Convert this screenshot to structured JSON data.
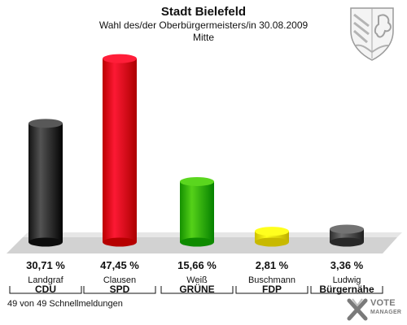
{
  "header": {
    "title": "Stadt Bielefeld",
    "subtitle": "Wahl des/der Oberbürgermeisters/in 30.08.2009",
    "area": "Mitte"
  },
  "footer": {
    "status": "49 von 49 Schnellmeldungen"
  },
  "logo": {
    "line1": "VOTE",
    "line2": "MANAGER"
  },
  "icons": {
    "crest": "state-coat-of-arms-icon",
    "logo_mark": "vote-manager-x-icon"
  },
  "chart_data": {
    "type": "bar",
    "categories": [
      "Landgraf",
      "Clausen",
      "Weiß",
      "Buschmann",
      "Ludwig"
    ],
    "parties": [
      "CDU",
      "SPD",
      "GRÜNE",
      "FDP",
      "Bürgernähe"
    ],
    "values": [
      30.71,
      47.45,
      15.66,
      2.81,
      3.36
    ],
    "value_labels": [
      "30,71 %",
      "47,45 %",
      "15,66 %",
      "2,81 %",
      "3,36 %"
    ],
    "colors": [
      "#3a3a3a",
      "#e3001b",
      "#3cb800",
      "#f5e600",
      "#555555"
    ],
    "ylim": [
      0,
      50
    ],
    "grid": false,
    "legend": "none"
  }
}
